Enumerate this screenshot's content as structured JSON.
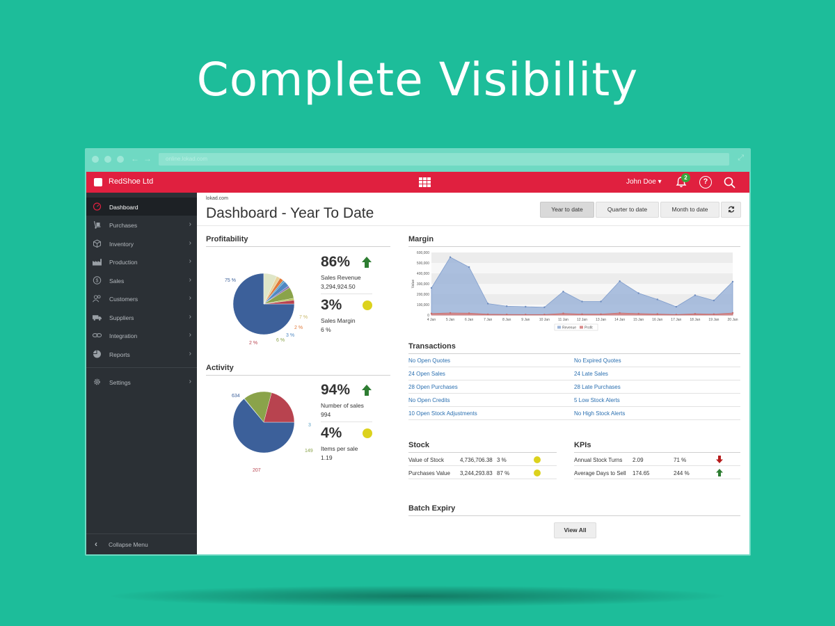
{
  "headline": "Complete Visibility",
  "browser": {
    "url": "online.lokad.com"
  },
  "topbar": {
    "brand": "RedShoe Ltd",
    "user": "John Doe",
    "notification_count": "2",
    "icons": [
      "cube-logo-icon",
      "apps-grid-icon",
      "bell-icon",
      "help-icon",
      "search-icon"
    ]
  },
  "sidebar": {
    "items": [
      {
        "label": "Dashboard",
        "icon": "speedometer-icon",
        "active": true
      },
      {
        "label": "Purchases",
        "icon": "hand-truck-icon"
      },
      {
        "label": "Inventory",
        "icon": "box-icon"
      },
      {
        "label": "Production",
        "icon": "factory-icon"
      },
      {
        "label": "Sales",
        "icon": "dollar-icon"
      },
      {
        "label": "Customers",
        "icon": "users-icon"
      },
      {
        "label": "Suppliers",
        "icon": "truck-icon"
      },
      {
        "label": "Integration",
        "icon": "link-icon"
      },
      {
        "label": "Reports",
        "icon": "pie-icon"
      },
      {
        "label": "Settings",
        "icon": "gear-icon"
      }
    ],
    "collapse_label": "Collapse Menu"
  },
  "page": {
    "crumb": "lokad.com",
    "title": "Dashboard - Year To Date",
    "buttons": {
      "year": "Year to date",
      "quarter": "Quarter to date",
      "month": "Month to date"
    }
  },
  "profitability": {
    "title": "Profitability",
    "kpi1": {
      "value": "86%",
      "label": "Sales Revenue",
      "sub": "3,294,924.50",
      "trend": "up"
    },
    "kpi2": {
      "value": "3%",
      "label": "Sales Margin",
      "sub": "6 %",
      "status": "neutral"
    },
    "pie": [
      {
        "label": "75 %",
        "value": 75,
        "color": "#3c609a"
      },
      {
        "label": "7 %",
        "value": 7,
        "color": "#dfe6c8"
      },
      {
        "label": "",
        "value": 2,
        "color": "#e8d29a"
      },
      {
        "label": "2 %",
        "value": 2,
        "color": "#e07a3a"
      },
      {
        "label": "",
        "value": 1,
        "color": "#5aa1c6"
      },
      {
        "label": "3 %",
        "value": 3,
        "color": "#4f88c2"
      },
      {
        "label": "",
        "value": 1,
        "color": "#8a6fb3"
      },
      {
        "label": "6 %",
        "value": 6,
        "color": "#8aa34a"
      },
      {
        "label": "",
        "value": 1,
        "color": "#b5c256"
      },
      {
        "label": "2 %",
        "value": 2,
        "color": "#b8434f"
      }
    ]
  },
  "activity": {
    "title": "Activity",
    "kpi1": {
      "value": "94%",
      "label": "Number of sales",
      "sub": "994",
      "trend": "up"
    },
    "kpi2": {
      "value": "4%",
      "label": "Items per sale",
      "sub": "1.19",
      "status": "neutral"
    },
    "pie": [
      {
        "label": "634",
        "value": 634,
        "color": "#3c609a"
      },
      {
        "label": "3",
        "value": 3,
        "color": "#5aa1c6"
      },
      {
        "label": "149",
        "value": 149,
        "color": "#8aa34a"
      },
      {
        "label": "207",
        "value": 207,
        "color": "#b8434f"
      }
    ]
  },
  "margin": {
    "title": "Margin",
    "chart_data": {
      "type": "area",
      "ylabel": "Value",
      "ylim": [
        0,
        600000
      ],
      "yticks": [
        "600,000",
        "500,000",
        "400,000",
        "300,000",
        "200,000",
        "100,000",
        "0"
      ],
      "categories": [
        "4 Jan",
        "5 Jan",
        "6 Jan",
        "7 Jan",
        "8 Jan",
        "9 Jan",
        "10 Jan",
        "11 Jan",
        "12 Jan",
        "13 Jan",
        "14 Jan",
        "15 Jan",
        "16 Jan",
        "17 Jan",
        "18 Jan",
        "19 Jan",
        "20 Jan"
      ],
      "series": [
        {
          "name": "Revenue",
          "color": "#9db5d9",
          "values": [
            260000,
            555000,
            460000,
            110000,
            85000,
            80000,
            75000,
            225000,
            130000,
            130000,
            325000,
            210000,
            150000,
            80000,
            190000,
            140000,
            320000
          ]
        },
        {
          "name": "Profit",
          "color": "#d98a8a",
          "values": [
            15000,
            20000,
            18000,
            8000,
            6000,
            5000,
            5000,
            16000,
            9000,
            9000,
            20000,
            14000,
            10000,
            5000,
            12000,
            9000,
            20000
          ]
        }
      ]
    }
  },
  "transactions": {
    "title": "Transactions",
    "left": [
      "No Open Quotes",
      "24 Open Sales",
      "28 Open Purchases",
      "No Open Credits",
      "10 Open Stock Adjustments"
    ],
    "right": [
      "No Expired Quotes",
      "24 Late Sales",
      "28 Late Purchases",
      "5 Low Stock Alerts",
      "No High Stock Alerts"
    ]
  },
  "stock": {
    "title": "Stock",
    "rows": [
      {
        "label": "Value of Stock",
        "value": "4,736,706.38",
        "pct": "3 %"
      },
      {
        "label": "Purchases Value",
        "value": "3,244,293.83",
        "pct": "87 %"
      }
    ]
  },
  "kpis": {
    "title": "KPIs",
    "rows": [
      {
        "label": "Annual Stock Turns",
        "value": "2.09",
        "pct": "71 %",
        "trend": "down"
      },
      {
        "label": "Average Days to Sell",
        "value": "174.65",
        "pct": "244 %",
        "trend": "up"
      }
    ]
  },
  "batch": {
    "title": "Batch Expiry",
    "view_all": "View All"
  },
  "colors": {
    "topbar": "#e0203f",
    "sidebar": "#2b3035",
    "background": "#1dbd9a",
    "link": "#2a6fb0",
    "up": "#2e7d32",
    "down": "#b71c1c",
    "neutral": "#dcd21d"
  }
}
